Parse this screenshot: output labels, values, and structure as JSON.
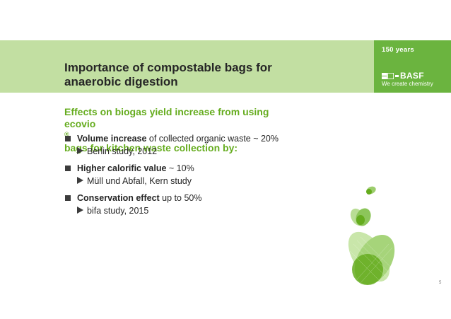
{
  "header": {
    "anniversary": "150 years",
    "brand": "BASF",
    "slogan": "We create chemistry"
  },
  "title": {
    "line1": "Importance of compostable bags for",
    "line2": "anaerobic digestion"
  },
  "subtitle": {
    "line1": "Effects on biogas yield increase from using",
    "line2_brand": "ecovio",
    "line2_mark": "®",
    "line2_rest": " bags for kitchen waste collection by:"
  },
  "bullets": [
    {
      "strong": "Volume increase",
      "rest": " of collected organic waste ~ 20%",
      "sub": "Berlin study, 2012"
    },
    {
      "strong": "Higher calorific value",
      "rest": " ~ 10%",
      "sub": "Müll und Abfall, Kern study"
    },
    {
      "strong": "Conservation effect",
      "rest": " up to 50%",
      "sub": "bifa study, 2015"
    }
  ],
  "page_number": "5",
  "colors": {
    "band": "#c2dfa2",
    "brand_panel": "#6bb43f",
    "accent_text": "#65ac1e",
    "body_text": "#262626"
  },
  "icons": {
    "bullet": "square-bullet-icon",
    "sub_bullet": "triangle-arrow-icon",
    "brand": "basf-logo-icon",
    "decoration": "leaf-graphic"
  }
}
